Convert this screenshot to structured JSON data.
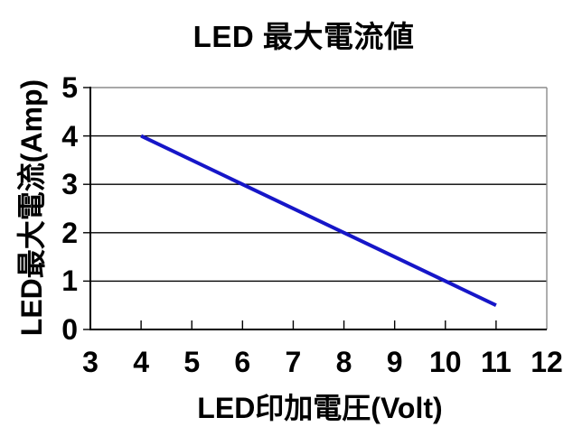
{
  "chart_data": {
    "type": "line",
    "title": "LED 最大電流値",
    "xlabel": "LED印加電圧(Volt)",
    "ylabel": "LED最大電流(Amp)",
    "xlim": [
      3,
      12
    ],
    "ylim": [
      0,
      5
    ],
    "x_ticks": [
      3,
      4,
      5,
      6,
      7,
      8,
      9,
      10,
      11,
      12
    ],
    "y_ticks": [
      0,
      1,
      2,
      3,
      4,
      5
    ],
    "grid": "horizontal-major",
    "legend": "none",
    "series": [
      {
        "x": [
          4,
          11
        ],
        "y": [
          4,
          0.5
        ],
        "color": "#1616C8",
        "line_width": 4
      }
    ],
    "colors": {
      "line": "#1616C8",
      "axis": "#000000",
      "gridline": "#000000",
      "plot_border": "#8c8c8c",
      "background": "#ffffff",
      "text": "#000000"
    }
  }
}
